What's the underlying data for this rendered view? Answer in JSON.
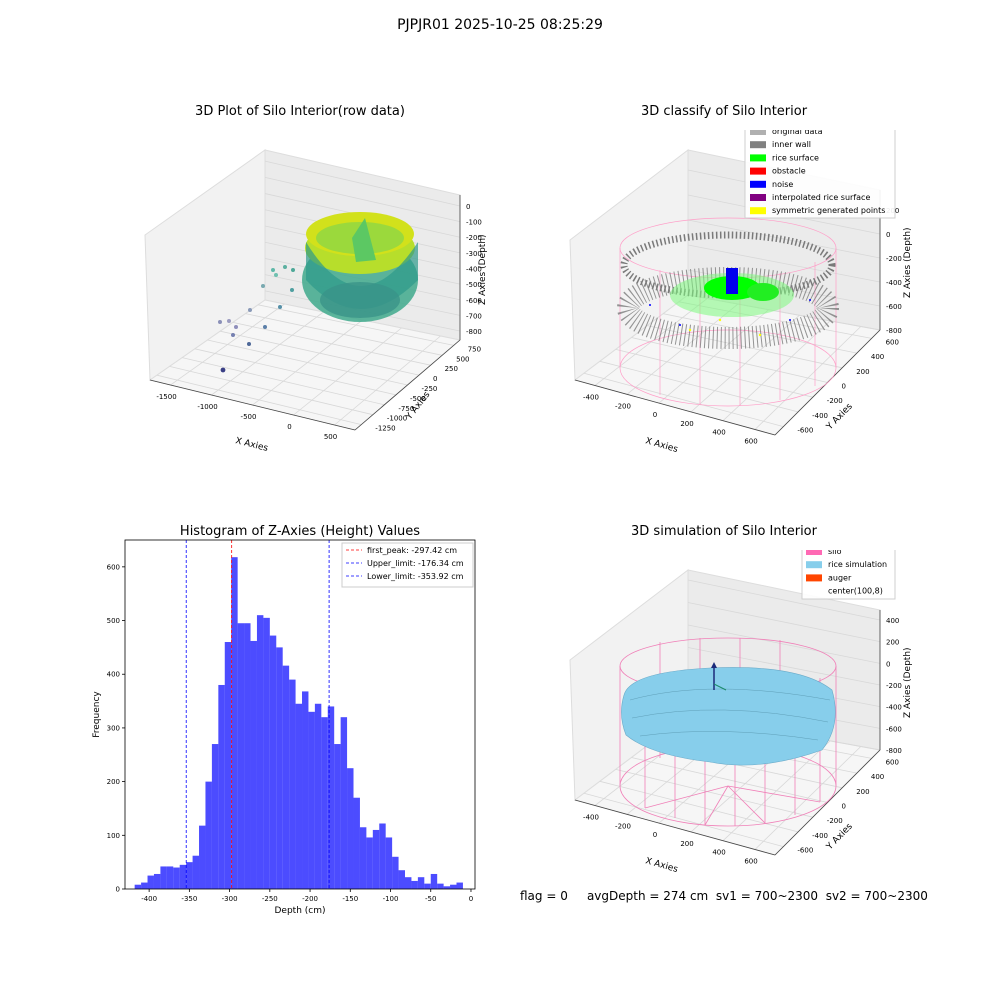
{
  "figure": {
    "suptitle": "PJPJR01 2025-10-25 08:25:29",
    "status": {
      "flag": "flag = 0",
      "avg_depth": "avgDepth = 274 cm",
      "sv1": "sv1 = 700~2300",
      "sv2": "sv2 = 700~2300"
    }
  },
  "plots": {
    "raw": {
      "title": "3D Plot of Silo Interior(row data)",
      "xlabel": "X Axies",
      "ylabel": "Y Axies",
      "zlabel": "Z Axies (Depth)",
      "xticks": [
        "-1500",
        "-1000",
        "-500",
        "0",
        "500"
      ],
      "yticks": [
        "750",
        "500",
        "250",
        "0",
        "-250",
        "-500",
        "-750",
        "-1000",
        "-1250"
      ],
      "zticks": [
        "0",
        "-100",
        "-200",
        "-300",
        "-400",
        "-500",
        "-600",
        "-700",
        "-800"
      ]
    },
    "classify": {
      "title": "3D classify of Silo Interior",
      "xlabel": "X Axies",
      "ylabel": "Y Axies",
      "zlabel": "Z Axies (Depth)",
      "xticks": [
        "-400",
        "-200",
        "0",
        "200",
        "400",
        "600"
      ],
      "yticks": [
        "600",
        "400",
        "200",
        "0",
        "-200",
        "-400",
        "-600"
      ],
      "zticks": [
        "200",
        "0",
        "-200",
        "-400",
        "-600",
        "-800"
      ],
      "legend": [
        {
          "label": "original data",
          "color": "#b0b0b0"
        },
        {
          "label": "inner wall",
          "color": "#808080"
        },
        {
          "label": "rice surface",
          "color": "#00ff00"
        },
        {
          "label": "obstacle",
          "color": "#ff0000"
        },
        {
          "label": "noise",
          "color": "#0000ff"
        },
        {
          "label": "interpolated rice surface",
          "color": "#800080"
        },
        {
          "label": "symmetric generated points",
          "color": "#ffff00"
        }
      ]
    },
    "simulation": {
      "title": "3D simulation of Silo Interior",
      "xlabel": "X Axies",
      "ylabel": "Y Axies",
      "zlabel": "Z Axies (Depth)",
      "xticks": [
        "-400",
        "-200",
        "0",
        "200",
        "400",
        "600"
      ],
      "yticks": [
        "600",
        "400",
        "200",
        "0",
        "-200",
        "-400",
        "-600"
      ],
      "zticks": [
        "400",
        "200",
        "0",
        "-200",
        "-400",
        "-600",
        "-800"
      ],
      "legend": [
        {
          "label": "silo",
          "color": "#ff69b4"
        },
        {
          "label": "rice simulation",
          "color": "#87ceeb"
        },
        {
          "label": "auger",
          "color": "#ff4500"
        },
        {
          "label": "center(100,8)",
          "color": ""
        }
      ]
    }
  },
  "chart_data": {
    "type": "bar",
    "title": "Histogram of Z-Axies (Height) Values",
    "xlabel": "Depth (cm)",
    "ylabel": "Frequency",
    "xlim": [
      -430,
      5
    ],
    "ylim": [
      0,
      650
    ],
    "xticks": [
      -400,
      -350,
      -300,
      -250,
      -200,
      -150,
      -100,
      -50,
      0
    ],
    "yticks": [
      0,
      100,
      200,
      300,
      400,
      500,
      600
    ],
    "bar_color": "#0000ff",
    "bin_width": 8,
    "bin_starts": [
      -418,
      -410,
      -402,
      -394,
      -386,
      -378,
      -370,
      -362,
      -354,
      -346,
      -338,
      -330,
      -322,
      -314,
      -306,
      -298,
      -290,
      -282,
      -274,
      -266,
      -258,
      -250,
      -242,
      -234,
      -226,
      -218,
      -210,
      -202,
      -194,
      -186,
      -178,
      -170,
      -162,
      -154,
      -146,
      -138,
      -130,
      -122,
      -114,
      -106,
      -98,
      -90,
      -82,
      -74,
      -66,
      -58,
      -50,
      -42,
      -34,
      -26,
      -18
    ],
    "values": [
      8,
      12,
      25,
      28,
      42,
      42,
      40,
      45,
      50,
      62,
      118,
      200,
      270,
      380,
      460,
      618,
      495,
      495,
      462,
      510,
      505,
      472,
      450,
      416,
      390,
      345,
      368,
      330,
      345,
      320,
      340,
      270,
      320,
      225,
      170,
      115,
      96,
      110,
      122,
      96,
      60,
      35,
      22,
      15,
      22,
      10,
      28,
      10,
      5,
      8,
      12
    ],
    "lines": [
      {
        "label": "first_peak: -297.42 cm",
        "x": -297.42,
        "color": "#ff0000",
        "style": "dashed"
      },
      {
        "label": "Upper_limit: -176.34 cm",
        "x": -176.34,
        "color": "#0000ff",
        "style": "dashed"
      },
      {
        "label": "Lower_limit: -353.92 cm",
        "x": -353.92,
        "color": "#0000ff",
        "style": "dashed"
      }
    ],
    "legend_position": "upper-right"
  }
}
